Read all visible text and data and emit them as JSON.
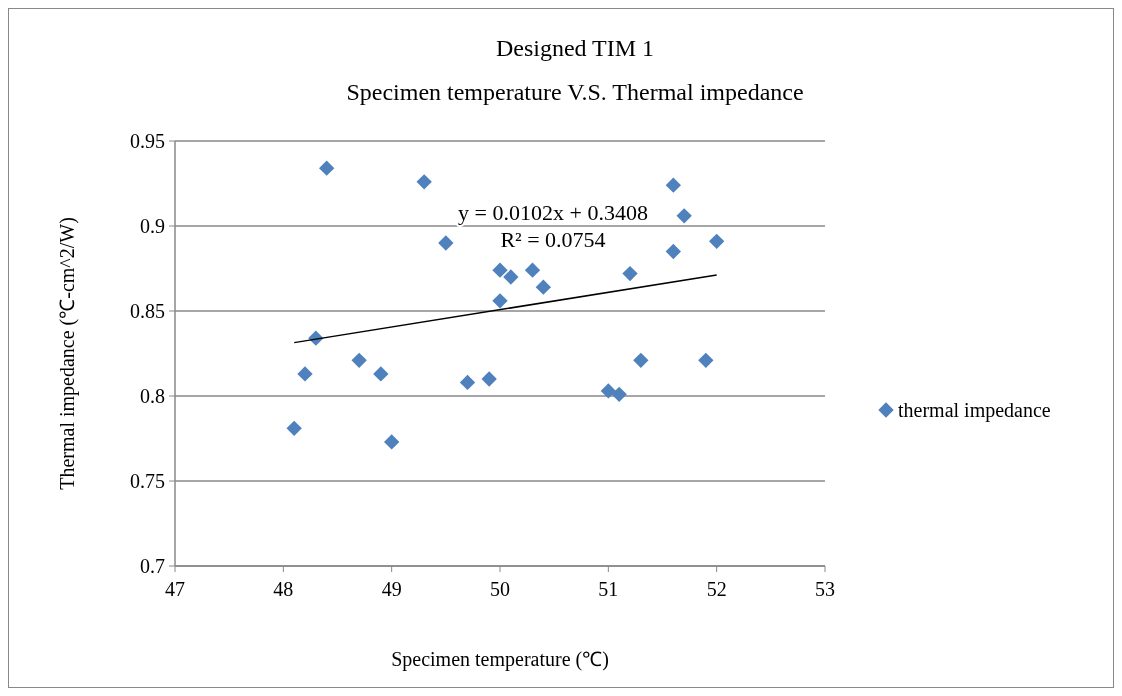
{
  "chart_data": {
    "type": "scatter",
    "title": "Designed TIM 1",
    "subtitle": "Specimen temperature V.S. Thermal impedance",
    "xlabel": "Specimen temperature (℃)",
    "ylabel": "Thermal impedance (℃-cm^2/W)",
    "xlim": [
      47,
      53
    ],
    "xticks": [
      47,
      48,
      49,
      50,
      51,
      52,
      53
    ],
    "ylim": [
      0.7,
      0.95
    ],
    "yticks": [
      0.7,
      0.75,
      0.8,
      0.85,
      0.9,
      0.95
    ],
    "grid": "y",
    "legend": "right",
    "annotations": [
      "y = 0.0102x + 0.3408",
      "R² = 0.0754"
    ],
    "series": [
      {
        "name": "thermal impedance",
        "color": "#4f81bd",
        "marker": "diamond",
        "x": [
          48.4,
          49.3,
          49.5,
          50.0,
          50.1,
          50.3,
          50.4,
          50.0,
          48.3,
          48.7,
          48.2,
          48.9,
          49.7,
          49.9,
          48.1,
          49.0,
          51.0,
          51.1,
          51.3,
          51.2,
          51.6,
          51.7,
          51.6,
          52.0,
          51.9
        ],
        "values": [
          0.934,
          0.926,
          0.89,
          0.874,
          0.87,
          0.874,
          0.864,
          0.856,
          0.834,
          0.821,
          0.813,
          0.813,
          0.808,
          0.81,
          0.781,
          0.773,
          0.803,
          0.801,
          0.821,
          0.872,
          0.924,
          0.906,
          0.885,
          0.891,
          0.821
        ]
      },
      {
        "type": "line",
        "color": "#000000",
        "x": [
          48.1,
          52.0
        ],
        "values": [
          0.8314,
          0.8712
        ]
      }
    ]
  }
}
